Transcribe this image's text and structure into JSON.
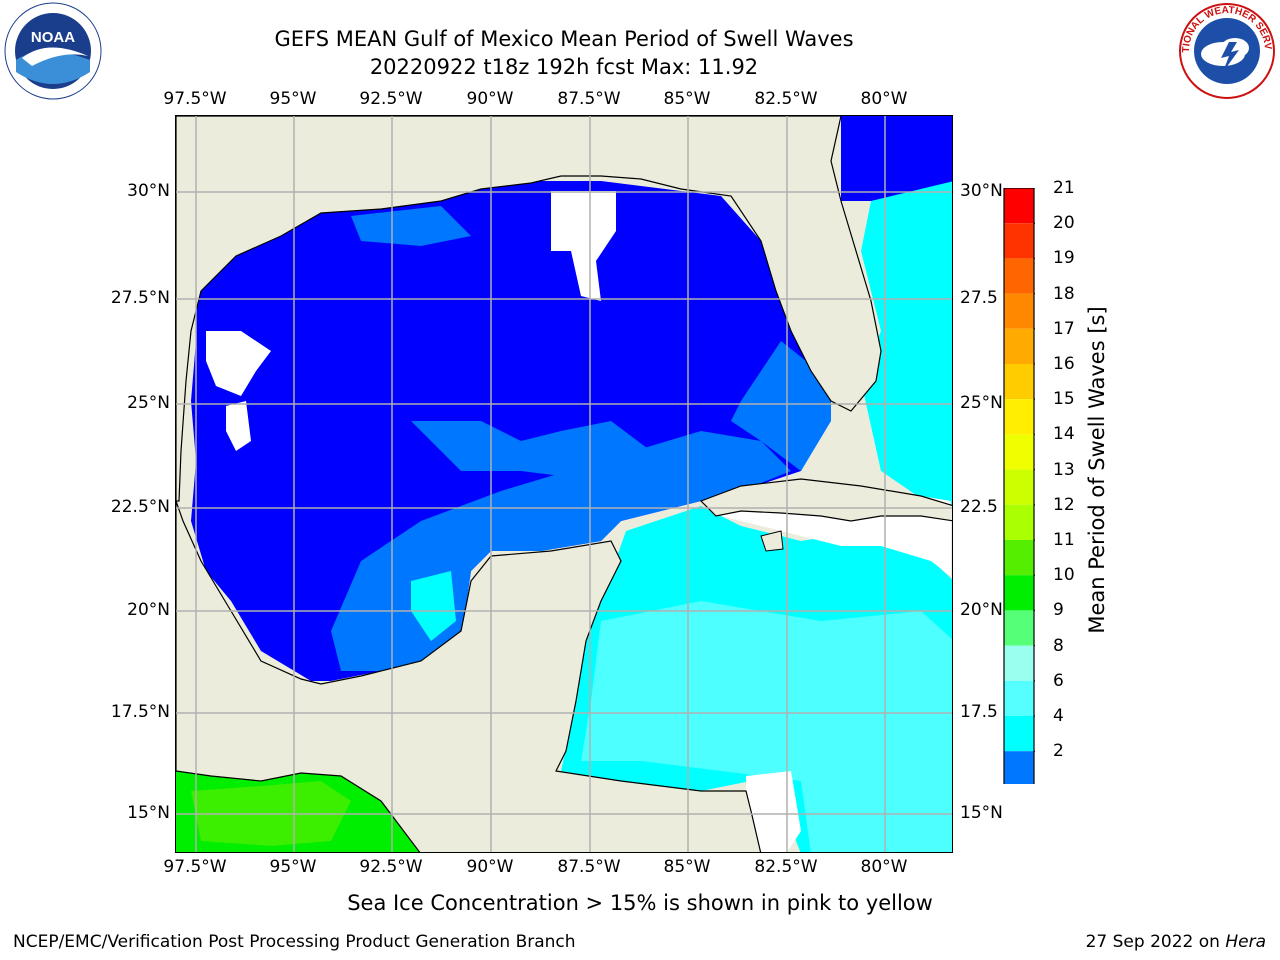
{
  "header": {
    "title": "GEFS MEAN Gulf of Mexico Mean Period of Swell Waves",
    "subtitle": "20220922 t18z 192h fcst   Max: 11.92"
  },
  "map": {
    "lon_labels": [
      "97.5°W",
      "95°W",
      "92.5°W",
      "90°W",
      "87.5°W",
      "85°W",
      "82.5°W",
      "80°W"
    ],
    "lat_labels": [
      "30°N",
      "27.5°N",
      "25°N",
      "22.5°N",
      "20°N",
      "17.5°N",
      "15°N"
    ],
    "lat_labels_right": [
      "30°N",
      "27.5",
      "25°N",
      "22.5",
      "20°N",
      "17.5",
      "15°N"
    ],
    "gridlines": true,
    "colors": {
      "land": "#ececdc",
      "coast": "#000000",
      "grid": "#b0b0b0"
    }
  },
  "colorbar": {
    "label": "Mean Period of Swell Waves [s]",
    "ticks": [
      "21",
      "20",
      "19",
      "18",
      "17",
      "16",
      "15",
      "14",
      "13",
      "12",
      "11",
      "10",
      "9",
      "8",
      "6",
      "4",
      "2"
    ],
    "colors_top_to_bottom": [
      "#ff0000",
      "#ff3300",
      "#ff6600",
      "#ff8800",
      "#ffaa00",
      "#ffcc00",
      "#ffee00",
      "#f0ff00",
      "#ccff00",
      "#aaff00",
      "#55ee00",
      "#00ee00",
      "#55ff77",
      "#99ffee",
      "#55ffff",
      "#00ffff",
      "#0077ff"
    ],
    "extend_color": "#0000ff"
  },
  "caption": "Sea Ice Concentration > 15% is shown in pink to yellow",
  "footer": {
    "left": "NCEP/EMC/Verification Post Processing Product Generation Branch",
    "right_date": "27 Sep 2022 on ",
    "right_host": "Hera"
  },
  "logos": {
    "left": "NOAA",
    "right": "NATIONAL WEATHER SERVICE"
  }
}
